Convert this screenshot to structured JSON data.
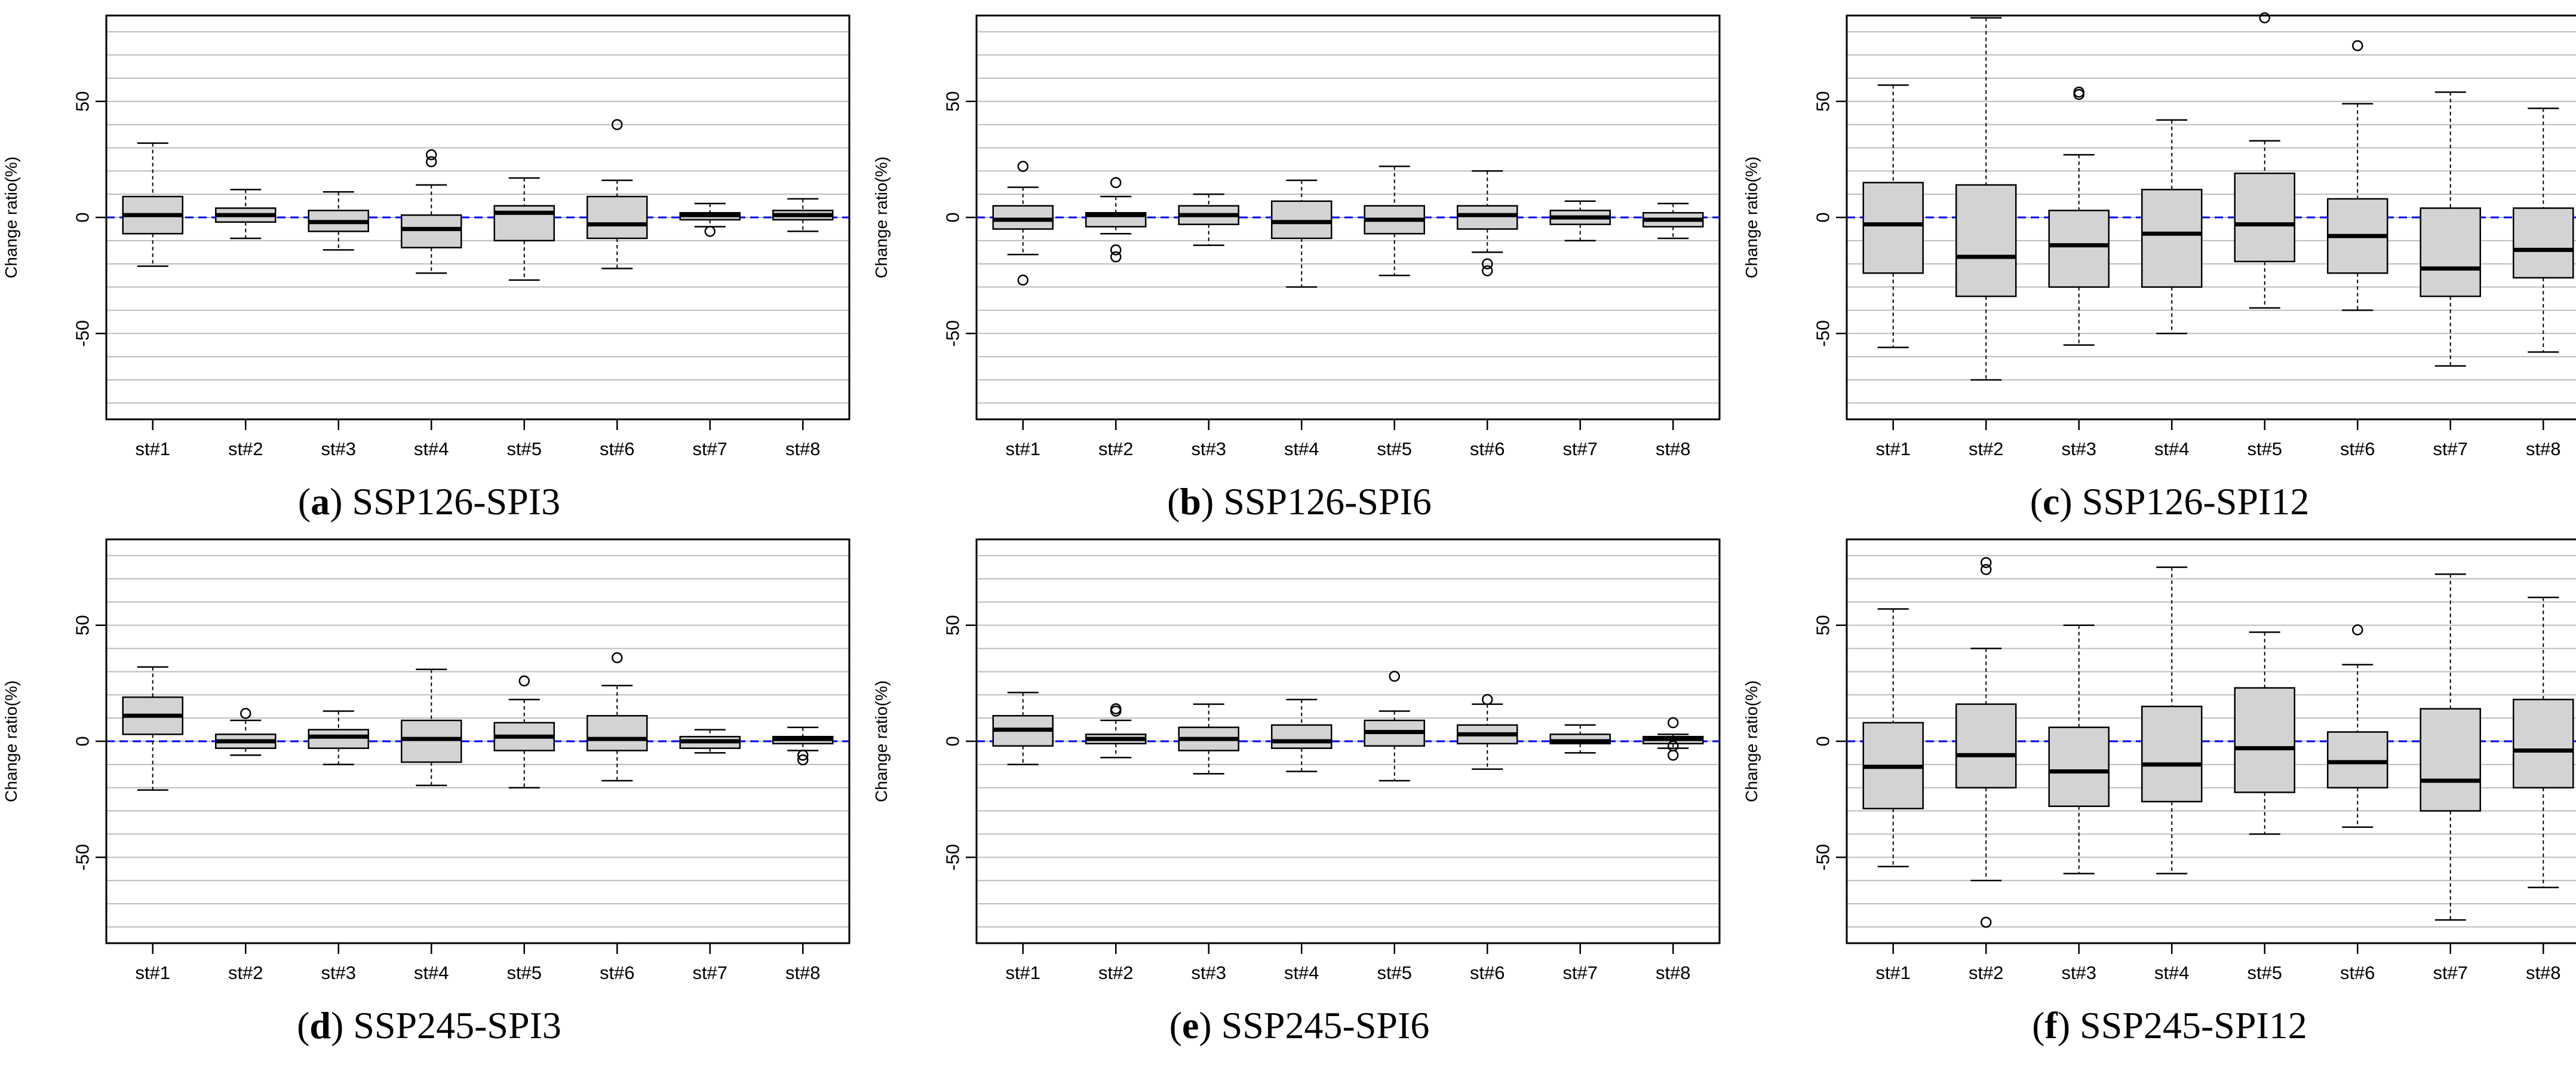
{
  "figure": {
    "colors": {
      "box_fill": "#d3d3d3",
      "reference_line": "#0000ff",
      "grid": "#bdbdbd",
      "frame": "#000000"
    }
  },
  "chart_data": [
    {
      "type": "boxplot",
      "panel_letter": "a",
      "panel_title": "SSP126-SPI3",
      "ylabel": "Change ratio(%)",
      "ylim": [
        -87,
        87
      ],
      "yticks": [
        -50,
        0,
        50
      ],
      "reference_line": 0,
      "categories": [
        "st#1",
        "st#2",
        "st#3",
        "st#4",
        "st#5",
        "st#6",
        "st#7",
        "st#8"
      ],
      "boxes": [
        {
          "min": -21,
          "q1": -7,
          "median": 1,
          "q3": 9,
          "max": 32,
          "outliers": []
        },
        {
          "min": -9,
          "q1": -2,
          "median": 1,
          "q3": 4,
          "max": 12,
          "outliers": []
        },
        {
          "min": -14,
          "q1": -6,
          "median": -2,
          "q3": 3,
          "max": 11,
          "outliers": []
        },
        {
          "min": -24,
          "q1": -13,
          "median": -5,
          "q3": 1,
          "max": 14,
          "outliers": [
            24,
            27
          ]
        },
        {
          "min": -27,
          "q1": -10,
          "median": 2,
          "q3": 5,
          "max": 17,
          "outliers": []
        },
        {
          "min": -22,
          "q1": -9,
          "median": -3,
          "q3": 9,
          "max": 16,
          "outliers": [
            40
          ]
        },
        {
          "min": -4,
          "q1": -1,
          "median": 1,
          "q3": 2,
          "max": 6,
          "outliers": [
            -6
          ]
        },
        {
          "min": -6,
          "q1": -1,
          "median": 1,
          "q3": 3,
          "max": 8,
          "outliers": []
        }
      ]
    },
    {
      "type": "boxplot",
      "panel_letter": "b",
      "panel_title": "SSP126-SPI6",
      "ylabel": "Change ratio(%)",
      "ylim": [
        -87,
        87
      ],
      "yticks": [
        -50,
        0,
        50
      ],
      "reference_line": 0,
      "categories": [
        "st#1",
        "st#2",
        "st#3",
        "st#4",
        "st#5",
        "st#6",
        "st#7",
        "st#8"
      ],
      "boxes": [
        {
          "min": -16,
          "q1": -5,
          "median": -1,
          "q3": 5,
          "max": 13,
          "outliers": [
            22,
            -27
          ]
        },
        {
          "min": -7,
          "q1": -4,
          "median": 1,
          "q3": 2,
          "max": 9,
          "outliers": [
            15,
            -14,
            -17
          ]
        },
        {
          "min": -12,
          "q1": -3,
          "median": 1,
          "q3": 5,
          "max": 10,
          "outliers": []
        },
        {
          "min": -30,
          "q1": -9,
          "median": -2,
          "q3": 7,
          "max": 16,
          "outliers": []
        },
        {
          "min": -25,
          "q1": -7,
          "median": -1,
          "q3": 5,
          "max": 22,
          "outliers": []
        },
        {
          "min": -15,
          "q1": -5,
          "median": 1,
          "q3": 5,
          "max": 20,
          "outliers": [
            -20,
            -23
          ]
        },
        {
          "min": -10,
          "q1": -3,
          "median": 0,
          "q3": 3,
          "max": 7,
          "outliers": []
        },
        {
          "min": -9,
          "q1": -4,
          "median": -1,
          "q3": 2,
          "max": 6,
          "outliers": []
        }
      ]
    },
    {
      "type": "boxplot",
      "panel_letter": "c",
      "panel_title": "SSP126-SPI12",
      "ylabel": "Change ratio(%)",
      "ylim": [
        -87,
        87
      ],
      "yticks": [
        -50,
        0,
        50
      ],
      "reference_line": 0,
      "categories": [
        "st#1",
        "st#2",
        "st#3",
        "st#4",
        "st#5",
        "st#6",
        "st#7",
        "st#8"
      ],
      "boxes": [
        {
          "min": -56,
          "q1": -24,
          "median": -3,
          "q3": 15,
          "max": 57,
          "outliers": []
        },
        {
          "min": -70,
          "q1": -34,
          "median": -17,
          "q3": 14,
          "max": 86,
          "outliers": []
        },
        {
          "min": -55,
          "q1": -30,
          "median": -12,
          "q3": 3,
          "max": 27,
          "outliers": [
            53,
            54
          ]
        },
        {
          "min": -50,
          "q1": -30,
          "median": -7,
          "q3": 12,
          "max": 42,
          "outliers": []
        },
        {
          "min": -39,
          "q1": -19,
          "median": -3,
          "q3": 19,
          "max": 33,
          "outliers": [
            86
          ]
        },
        {
          "min": -40,
          "q1": -24,
          "median": -8,
          "q3": 8,
          "max": 49,
          "outliers": [
            74
          ]
        },
        {
          "min": -64,
          "q1": -34,
          "median": -22,
          "q3": 4,
          "max": 54,
          "outliers": []
        },
        {
          "min": -58,
          "q1": -26,
          "median": -14,
          "q3": 4,
          "max": 47,
          "outliers": []
        }
      ]
    },
    {
      "type": "boxplot",
      "panel_letter": "d",
      "panel_title": "SSP245-SPI3",
      "ylabel": "Change ratio(%)",
      "ylim": [
        -87,
        87
      ],
      "yticks": [
        -50,
        0,
        50
      ],
      "reference_line": 0,
      "categories": [
        "st#1",
        "st#2",
        "st#3",
        "st#4",
        "st#5",
        "st#6",
        "st#7",
        "st#8"
      ],
      "boxes": [
        {
          "min": -21,
          "q1": 3,
          "median": 11,
          "q3": 19,
          "max": 32,
          "outliers": []
        },
        {
          "min": -6,
          "q1": -3,
          "median": 0,
          "q3": 3,
          "max": 9,
          "outliers": [
            12
          ]
        },
        {
          "min": -10,
          "q1": -3,
          "median": 2,
          "q3": 5,
          "max": 13,
          "outliers": []
        },
        {
          "min": -19,
          "q1": -9,
          "median": 1,
          "q3": 9,
          "max": 31,
          "outliers": []
        },
        {
          "min": -20,
          "q1": -4,
          "median": 2,
          "q3": 8,
          "max": 18,
          "outliers": [
            26
          ]
        },
        {
          "min": -17,
          "q1": -4,
          "median": 1,
          "q3": 11,
          "max": 24,
          "outliers": [
            36
          ]
        },
        {
          "min": -5,
          "q1": -3,
          "median": 0,
          "q3": 2,
          "max": 5,
          "outliers": []
        },
        {
          "min": -4,
          "q1": -1,
          "median": 1,
          "q3": 2,
          "max": 6,
          "outliers": [
            -6,
            -8
          ]
        }
      ]
    },
    {
      "type": "boxplot",
      "panel_letter": "e",
      "panel_title": "SSP245-SPI6",
      "ylabel": "Change ratio(%)",
      "ylim": [
        -87,
        87
      ],
      "yticks": [
        -50,
        0,
        50
      ],
      "reference_line": 0,
      "categories": [
        "st#1",
        "st#2",
        "st#3",
        "st#4",
        "st#5",
        "st#6",
        "st#7",
        "st#8"
      ],
      "boxes": [
        {
          "min": -10,
          "q1": -2,
          "median": 5,
          "q3": 11,
          "max": 21,
          "outliers": []
        },
        {
          "min": -7,
          "q1": -1,
          "median": 1,
          "q3": 3,
          "max": 9,
          "outliers": [
            13,
            14
          ]
        },
        {
          "min": -14,
          "q1": -4,
          "median": 1,
          "q3": 6,
          "max": 16,
          "outliers": []
        },
        {
          "min": -13,
          "q1": -3,
          "median": 0,
          "q3": 7,
          "max": 18,
          "outliers": []
        },
        {
          "min": -17,
          "q1": -2,
          "median": 4,
          "q3": 9,
          "max": 13,
          "outliers": [
            28
          ]
        },
        {
          "min": -12,
          "q1": -1,
          "median": 3,
          "q3": 7,
          "max": 16,
          "outliers": [
            18
          ]
        },
        {
          "min": -5,
          "q1": -1,
          "median": 0,
          "q3": 3,
          "max": 7,
          "outliers": []
        },
        {
          "min": -3,
          "q1": -1,
          "median": 1,
          "q3": 2,
          "max": 3,
          "outliers": [
            8,
            -2,
            -6
          ]
        }
      ]
    },
    {
      "type": "boxplot",
      "panel_letter": "f",
      "panel_title": "SSP245-SPI12",
      "ylabel": "Change ratio(%)",
      "ylim": [
        -87,
        87
      ],
      "yticks": [
        -50,
        0,
        50
      ],
      "reference_line": 0,
      "categories": [
        "st#1",
        "st#2",
        "st#3",
        "st#4",
        "st#5",
        "st#6",
        "st#7",
        "st#8"
      ],
      "boxes": [
        {
          "min": -54,
          "q1": -29,
          "median": -11,
          "q3": 8,
          "max": 57,
          "outliers": []
        },
        {
          "min": -60,
          "q1": -20,
          "median": -6,
          "q3": 16,
          "max": 40,
          "outliers": [
            74,
            77,
            -78
          ]
        },
        {
          "min": -57,
          "q1": -28,
          "median": -13,
          "q3": 6,
          "max": 50,
          "outliers": []
        },
        {
          "min": -57,
          "q1": -26,
          "median": -10,
          "q3": 15,
          "max": 75,
          "outliers": []
        },
        {
          "min": -40,
          "q1": -22,
          "median": -3,
          "q3": 23,
          "max": 47,
          "outliers": []
        },
        {
          "min": -37,
          "q1": -20,
          "median": -9,
          "q3": 4,
          "max": 33,
          "outliers": [
            48
          ]
        },
        {
          "min": -77,
          "q1": -30,
          "median": -17,
          "q3": 14,
          "max": 72,
          "outliers": []
        },
        {
          "min": -63,
          "q1": -20,
          "median": -4,
          "q3": 18,
          "max": 62,
          "outliers": []
        }
      ]
    }
  ]
}
